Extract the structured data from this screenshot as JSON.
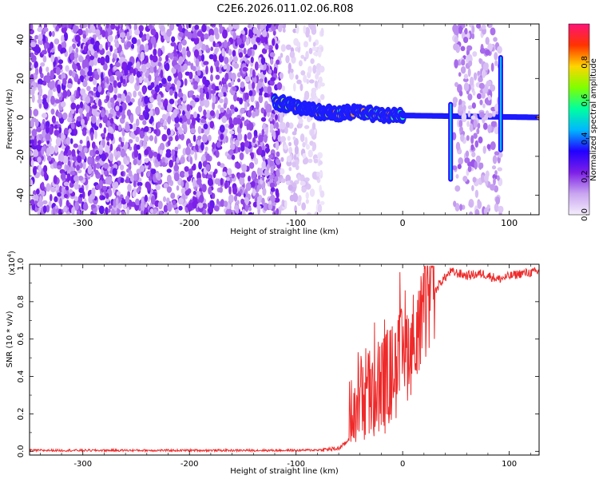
{
  "title": "C2E6.2026.011.02.06.R08",
  "chart_data": [
    {
      "type": "heatmap",
      "name": "spectrogram",
      "xlabel": "Height of straight line (km)",
      "ylabel": "Frequency (Hz)",
      "xlim": [
        -350,
        128
      ],
      "ylim": [
        -50,
        48
      ],
      "xticks": [
        -300,
        -200,
        -100,
        0,
        100
      ],
      "yticks": [
        -40,
        -20,
        0,
        20,
        40
      ],
      "colorbar": {
        "label": "Normalized spectral amplitude",
        "range": [
          0,
          1
        ],
        "ticks": [
          0.0,
          0.2,
          0.4,
          0.6,
          0.8
        ],
        "tick_labels": [
          "0.0",
          "0.2",
          "0.4",
          "0.6",
          "0.8"
        ],
        "colors": [
          "#f4eefc",
          "#c9a5f0",
          "#7d1fe8",
          "#2200ff",
          "#00b7ff",
          "#00ff9f",
          "#80ff00",
          "#ffd500",
          "#ff3300",
          "#ff1478"
        ]
      },
      "regions": [
        {
          "kind": "noise",
          "x_range": [
            -350,
            -115
          ],
          "amplitude": 0.2
        },
        {
          "kind": "noise_fading",
          "x_range": [
            -115,
            -75
          ],
          "amplitude": 0.08
        },
        {
          "kind": "signal",
          "x_range": [
            -120,
            128
          ],
          "freq_path": [
            [
              -120,
              8
            ],
            [
              -100,
              6
            ],
            [
              -80,
              3
            ],
            [
              -60,
              2
            ],
            [
              -40,
              3
            ],
            [
              -20,
              1
            ],
            [
              0,
              1
            ],
            [
              128,
              0
            ]
          ]
        },
        {
          "kind": "noise_burst",
          "x_range": [
            48,
            92
          ],
          "amplitude": 0.12
        },
        {
          "kind": "spike",
          "x": 45,
          "freq_range": [
            -33,
            8
          ]
        },
        {
          "kind": "spike",
          "x": 92,
          "freq_range": [
            -18,
            32
          ]
        }
      ]
    },
    {
      "type": "line",
      "name": "snr",
      "xlabel": "Height of straight line (km)",
      "ylabel": "SNR (10 * v/v)",
      "scale_label": "(x10",
      "scale_exp": "4",
      "scale_close": ")",
      "xlim": [
        -350,
        128
      ],
      "ylim": [
        -0.02,
        1.0
      ],
      "xticks": [
        -300,
        -200,
        -100,
        0,
        100
      ],
      "yticks": [
        0.0,
        0.2,
        0.4,
        0.6,
        0.8,
        1.0
      ],
      "ytick_labels": [
        "0.0",
        "0.2",
        "0.4",
        "0.6",
        "0.8",
        "1.0"
      ],
      "color": "#ee2a2a",
      "series": [
        {
          "name": "SNR",
          "x": [
            -350,
            -100,
            -75,
            -60,
            -52,
            -45,
            -35,
            -25,
            -15,
            -5,
            5,
            15,
            25,
            35,
            45,
            60,
            75,
            90,
            110,
            128
          ],
          "y": [
            0.005,
            0.005,
            0.008,
            0.015,
            0.05,
            0.2,
            0.3,
            0.32,
            0.38,
            0.45,
            0.55,
            0.64,
            0.8,
            0.9,
            0.96,
            0.94,
            0.95,
            0.92,
            0.95,
            0.96
          ]
        }
      ]
    }
  ]
}
